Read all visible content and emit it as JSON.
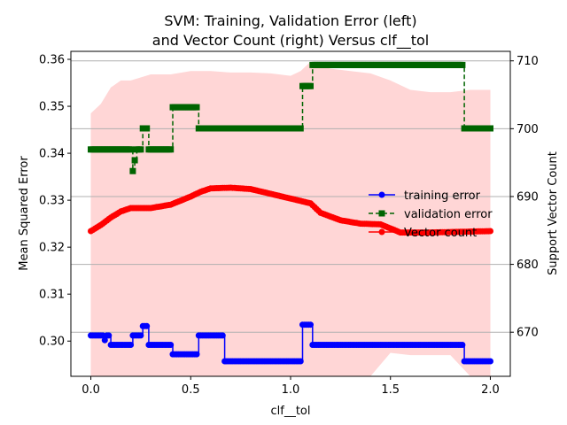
{
  "chart_data": {
    "type": "line",
    "title_line1": "SVM: Training, Validation Error (left)",
    "title_line2": "and Vector Count (right) Versus clf__tol",
    "xlabel": "clf__tol",
    "ylabel_left": "Mean Squared Error",
    "ylabel_right": "Support Vector Count",
    "xlim": [
      -0.1,
      2.1
    ],
    "ylim_left": [
      0.2925,
      0.3617
    ],
    "ylim_right": [
      663.5,
      711.4
    ],
    "xticks": [
      "0.0",
      "0.5",
      "1.0",
      "1.5",
      "2.0"
    ],
    "xtick_values": [
      0.0,
      0.5,
      1.0,
      1.5,
      2.0
    ],
    "yticks_left": [
      "0.30",
      "0.31",
      "0.32",
      "0.33",
      "0.34",
      "0.35",
      "0.36"
    ],
    "ytick_values_left": [
      0.3,
      0.31,
      0.32,
      0.33,
      0.34,
      0.35,
      0.36
    ],
    "yticks_right": [
      "670",
      "680",
      "690",
      "700",
      "710"
    ],
    "ytick_values_right": [
      670,
      680,
      690,
      700,
      710
    ],
    "grid": "right-axis horizontal lines",
    "legend_position": "center-right",
    "colors": {
      "training": "#0000ff",
      "validation": "#006400",
      "vector": "#ff0000",
      "band": "#ffd6d6",
      "grid": "#b0b0b0"
    },
    "series": [
      {
        "name": "training error",
        "axis": "left",
        "style": "solid-dot",
        "color": "#0000ff",
        "points": [
          [
            0.0,
            0.3012
          ],
          [
            0.06,
            0.3012
          ],
          [
            0.07,
            0.3002
          ],
          [
            0.08,
            0.3012
          ],
          [
            0.09,
            0.3012
          ],
          [
            0.1,
            0.2992
          ],
          [
            0.2,
            0.2992
          ],
          [
            0.21,
            0.3012
          ],
          [
            0.25,
            0.3012
          ],
          [
            0.26,
            0.3032
          ],
          [
            0.28,
            0.3032
          ],
          [
            0.29,
            0.2992
          ],
          [
            0.4,
            0.2992
          ],
          [
            0.41,
            0.2972
          ],
          [
            0.53,
            0.2972
          ],
          [
            0.54,
            0.3012
          ],
          [
            0.66,
            0.3012
          ],
          [
            0.67,
            0.2957
          ],
          [
            1.05,
            0.2957
          ],
          [
            1.06,
            0.3035
          ],
          [
            1.1,
            0.3035
          ],
          [
            1.11,
            0.2992
          ],
          [
            1.86,
            0.2992
          ],
          [
            1.87,
            0.2957
          ],
          [
            2.0,
            0.2957
          ]
        ]
      },
      {
        "name": "validation error",
        "axis": "left",
        "style": "dashed-square",
        "color": "#006400",
        "points": [
          [
            0.0,
            0.3408
          ],
          [
            0.2,
            0.3408
          ],
          [
            0.21,
            0.3362
          ],
          [
            0.22,
            0.3385
          ],
          [
            0.23,
            0.3408
          ],
          [
            0.25,
            0.3408
          ],
          [
            0.26,
            0.3453
          ],
          [
            0.28,
            0.3453
          ],
          [
            0.29,
            0.3408
          ],
          [
            0.4,
            0.3408
          ],
          [
            0.41,
            0.3498
          ],
          [
            0.53,
            0.3498
          ],
          [
            0.54,
            0.3453
          ],
          [
            1.05,
            0.3453
          ],
          [
            1.06,
            0.3543
          ],
          [
            1.1,
            0.3543
          ],
          [
            1.11,
            0.3588
          ],
          [
            1.86,
            0.3588
          ],
          [
            1.87,
            0.3453
          ],
          [
            2.0,
            0.3453
          ]
        ]
      },
      {
        "name": "Vector count",
        "axis": "right",
        "style": "solid-dot",
        "color": "#ff0000",
        "points": [
          [
            0.0,
            684.9
          ],
          [
            0.05,
            685.8
          ],
          [
            0.1,
            686.9
          ],
          [
            0.15,
            687.8
          ],
          [
            0.2,
            688.3
          ],
          [
            0.3,
            688.3
          ],
          [
            0.4,
            688.8
          ],
          [
            0.5,
            690.0
          ],
          [
            0.55,
            690.7
          ],
          [
            0.6,
            691.2
          ],
          [
            0.7,
            691.3
          ],
          [
            0.8,
            691.1
          ],
          [
            0.9,
            690.4
          ],
          [
            1.0,
            689.7
          ],
          [
            1.1,
            689.0
          ],
          [
            1.15,
            687.6
          ],
          [
            1.25,
            686.5
          ],
          [
            1.35,
            686.0
          ],
          [
            1.45,
            685.9
          ],
          [
            1.55,
            684.7
          ],
          [
            1.7,
            684.7
          ],
          [
            2.0,
            684.9
          ]
        ]
      }
    ],
    "band": {
      "axis": "left",
      "color": "#ffd6d6",
      "x": [
        0.0,
        0.05,
        0.1,
        0.15,
        0.2,
        0.3,
        0.4,
        0.5,
        0.6,
        0.7,
        0.8,
        0.9,
        1.0,
        1.05,
        1.1,
        1.2,
        1.3,
        1.4,
        1.5,
        1.6,
        1.7,
        1.8,
        1.9,
        2.0
      ],
      "upper": [
        0.3485,
        0.3505,
        0.354,
        0.3555,
        0.3555,
        0.3568,
        0.3568,
        0.3575,
        0.3575,
        0.3572,
        0.3572,
        0.357,
        0.3565,
        0.3575,
        0.3595,
        0.358,
        0.3575,
        0.357,
        0.3555,
        0.3535,
        0.353,
        0.353,
        0.3535,
        0.3535
      ],
      "lower": [
        0.2925,
        0.2925,
        0.2925,
        0.2925,
        0.2925,
        0.2925,
        0.2925,
        0.2925,
        0.2925,
        0.2925,
        0.2925,
        0.2925,
        0.2925,
        0.2925,
        0.2925,
        0.2925,
        0.2925,
        0.2925,
        0.2975,
        0.297,
        0.297,
        0.297,
        0.2925,
        0.2925
      ]
    }
  }
}
